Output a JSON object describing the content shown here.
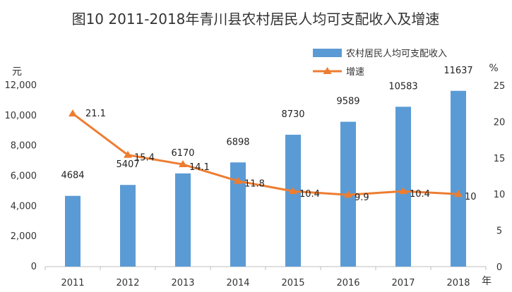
{
  "chart_data": {
    "type": "bar+line",
    "title": "图10 2011-2018年青川县农村居民人均可支配收入及增速",
    "categories": [
      "2011",
      "2012",
      "2013",
      "2014",
      "2015",
      "2016",
      "2017",
      "2018"
    ],
    "series": [
      {
        "name": "农村居民人均可支配收入",
        "type": "bar",
        "axis": "left",
        "values": [
          4684,
          5407,
          6170,
          6898,
          8730,
          9589,
          10583,
          11637
        ],
        "labels": [
          "4684",
          "5407",
          "6170",
          "6898",
          "8730",
          "9589",
          "10583",
          "11637"
        ]
      },
      {
        "name": "增速",
        "type": "line",
        "axis": "right",
        "values": [
          21.1,
          15.4,
          14.1,
          11.8,
          10.4,
          9.9,
          10.4,
          10.0
        ],
        "labels": [
          "21.1",
          "15.4",
          "14.1",
          "11.8",
          "10.4",
          "9.9",
          "10.4",
          "10"
        ]
      }
    ],
    "left_axis": {
      "unit": "元",
      "min": 0,
      "max": 12000,
      "step": 2000,
      "tick_labels": [
        "0",
        "2,000",
        "4,000",
        "6,000",
        "8,000",
        "10,000",
        "12,000"
      ]
    },
    "right_axis": {
      "unit": "%",
      "min": 0,
      "max": 25,
      "step": 5,
      "tick_labels": [
        "0",
        "5",
        "10",
        "15",
        "20",
        "25"
      ]
    },
    "x_unit": "年",
    "legend": {
      "position": "top-right"
    },
    "colors": {
      "bar": "#5b9bd5",
      "line": "#ed7d31"
    }
  }
}
